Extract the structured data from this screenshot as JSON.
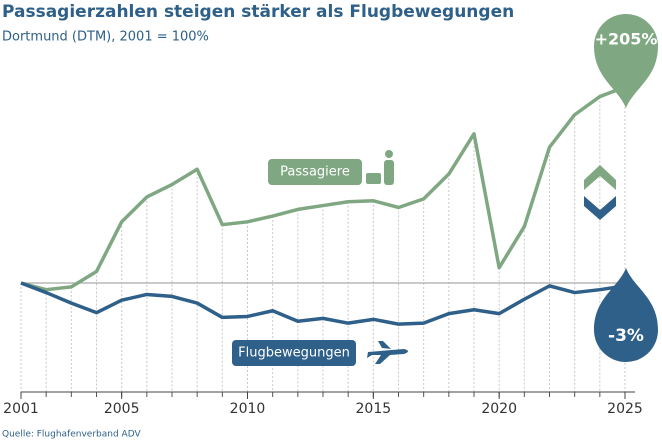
{
  "chart_data": {
    "type": "line",
    "title": "Passagierzahlen steigen stärker als Flugbewegungen",
    "subtitle": "Dortmund (DTM), 2001 = 100%",
    "source": "Quelle: Flughafenverband ADV",
    "x": [
      2001,
      2002,
      2003,
      2004,
      2005,
      2006,
      2007,
      2008,
      2009,
      2010,
      2011,
      2012,
      2013,
      2014,
      2015,
      2016,
      2017,
      2018,
      2019,
      2020,
      2021,
      2022,
      2023,
      2024,
      2025
    ],
    "xlim": [
      2001,
      2025
    ],
    "xticks": [
      2001,
      2005,
      2010,
      2015,
      2020,
      2025
    ],
    "ylim": [
      -14,
      396
    ],
    "reference_line": 100,
    "series": [
      {
        "name": "Passagiere",
        "color": "#7fa882",
        "change_label": "+205%",
        "values": [
          100,
          93,
          96,
          112,
          164,
          190,
          203,
          219,
          161,
          164,
          170,
          177,
          181,
          185,
          186,
          179,
          188,
          214,
          256,
          116,
          159,
          242,
          276,
          295,
          305
        ]
      },
      {
        "name": "Flugbewegungen",
        "color": "#2e6089",
        "change_label": "-3%",
        "values": [
          100,
          90,
          79,
          69,
          82,
          88,
          86,
          79,
          64,
          65,
          71,
          60,
          63,
          58,
          62,
          57,
          58,
          68,
          72,
          68,
          83,
          97,
          90,
          93,
          97
        ]
      }
    ]
  }
}
